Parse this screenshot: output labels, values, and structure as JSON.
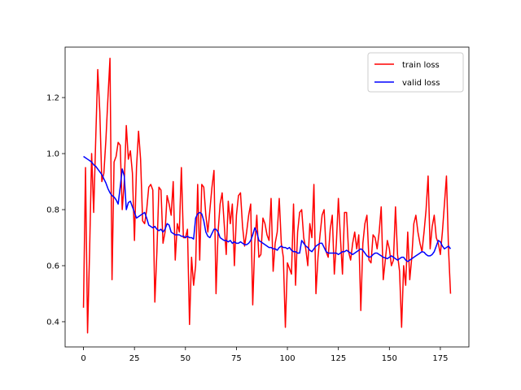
{
  "chart_data": {
    "type": "line",
    "x": [
      0,
      1,
      2,
      3,
      4,
      5,
      6,
      7,
      8,
      9,
      10,
      11,
      12,
      13,
      14,
      15,
      16,
      17,
      18,
      19,
      20,
      21,
      22,
      23,
      24,
      25,
      26,
      27,
      28,
      29,
      30,
      31,
      32,
      33,
      34,
      35,
      36,
      37,
      38,
      39,
      40,
      41,
      42,
      43,
      44,
      45,
      46,
      47,
      48,
      49,
      50,
      51,
      52,
      53,
      54,
      55,
      56,
      57,
      58,
      59,
      60,
      61,
      62,
      63,
      64,
      65,
      66,
      67,
      68,
      69,
      70,
      71,
      72,
      73,
      74,
      75,
      76,
      77,
      78,
      79,
      80,
      81,
      82,
      83,
      84,
      85,
      86,
      87,
      88,
      89,
      90,
      91,
      92,
      93,
      94,
      95,
      96,
      97,
      98,
      99,
      100,
      101,
      102,
      103,
      104,
      105,
      106,
      107,
      108,
      109,
      110,
      111,
      112,
      113,
      114,
      115,
      116,
      117,
      118,
      119,
      120,
      121,
      122,
      123,
      124,
      125,
      126,
      127,
      128,
      129,
      130,
      131,
      132,
      133,
      134,
      135,
      136,
      137,
      138,
      139,
      140,
      141,
      142,
      143,
      144,
      145,
      146,
      147,
      148,
      149,
      150,
      151,
      152,
      153,
      154,
      155,
      156,
      157,
      158,
      159,
      160,
      161,
      162,
      163,
      164,
      165,
      166,
      167,
      168,
      169,
      170,
      171,
      172,
      173,
      174,
      175,
      176,
      177,
      178,
      179,
      180
    ],
    "series": [
      {
        "name": "train loss",
        "color": "#ff0000",
        "values": [
          0.45,
          0.95,
          0.36,
          0.65,
          1.0,
          0.79,
          1.05,
          1.3,
          1.15,
          0.9,
          0.93,
          1.05,
          1.2,
          1.34,
          0.55,
          0.97,
          0.99,
          1.04,
          1.03,
          0.8,
          0.9,
          1.1,
          0.98,
          1.01,
          0.93,
          0.69,
          0.95,
          1.08,
          0.98,
          0.76,
          0.75,
          0.8,
          0.88,
          0.89,
          0.87,
          0.47,
          0.65,
          0.88,
          0.87,
          0.68,
          0.72,
          0.85,
          0.82,
          0.78,
          0.9,
          0.62,
          0.75,
          0.72,
          0.95,
          0.7,
          0.7,
          0.73,
          0.39,
          0.63,
          0.53,
          0.6,
          0.89,
          0.62,
          0.89,
          0.88,
          0.78,
          0.72,
          0.8,
          0.88,
          0.94,
          0.5,
          0.72,
          0.82,
          0.86,
          0.75,
          0.64,
          0.83,
          0.75,
          0.82,
          0.6,
          0.78,
          0.85,
          0.86,
          0.74,
          0.67,
          0.72,
          0.78,
          0.82,
          0.46,
          0.68,
          0.78,
          0.63,
          0.64,
          0.77,
          0.75,
          0.71,
          0.69,
          0.84,
          0.58,
          0.68,
          0.72,
          0.84,
          0.68,
          0.63,
          0.38,
          0.61,
          0.59,
          0.57,
          0.82,
          0.53,
          0.72,
          0.79,
          0.8,
          0.7,
          0.66,
          0.6,
          0.75,
          0.7,
          0.89,
          0.5,
          0.63,
          0.71,
          0.78,
          0.8,
          0.65,
          0.63,
          0.73,
          0.78,
          0.57,
          0.68,
          0.84,
          0.7,
          0.57,
          0.79,
          0.79,
          0.65,
          0.62,
          0.68,
          0.72,
          0.66,
          0.71,
          0.44,
          0.68,
          0.75,
          0.78,
          0.62,
          0.61,
          0.71,
          0.7,
          0.66,
          0.72,
          0.81,
          0.55,
          0.62,
          0.69,
          0.66,
          0.6,
          0.62,
          0.81,
          0.64,
          0.58,
          0.38,
          0.6,
          0.53,
          0.72,
          0.55,
          0.63,
          0.75,
          0.78,
          0.72,
          0.68,
          0.65,
          0.72,
          0.8,
          0.92,
          0.66,
          0.74,
          0.78,
          0.7,
          0.68,
          0.64,
          0.72,
          0.82,
          0.92,
          0.66,
          0.5
        ]
      },
      {
        "name": "valid loss",
        "color": "#0000ff",
        "values": [
          0.99,
          0.985,
          0.98,
          0.975,
          0.97,
          0.96,
          0.955,
          0.945,
          0.935,
          0.925,
          0.91,
          0.895,
          0.875,
          0.86,
          0.85,
          0.845,
          0.835,
          0.82,
          0.88,
          0.945,
          0.92,
          0.8,
          0.825,
          0.83,
          0.81,
          0.79,
          0.77,
          0.775,
          0.78,
          0.785,
          0.79,
          0.77,
          0.745,
          0.74,
          0.735,
          0.74,
          0.73,
          0.725,
          0.73,
          0.72,
          0.73,
          0.75,
          0.745,
          0.72,
          0.715,
          0.71,
          0.71,
          0.71,
          0.705,
          0.705,
          0.7,
          0.705,
          0.7,
          0.7,
          0.695,
          0.77,
          0.785,
          0.79,
          0.785,
          0.76,
          0.72,
          0.705,
          0.7,
          0.715,
          0.73,
          0.73,
          0.72,
          0.7,
          0.695,
          0.69,
          0.69,
          0.685,
          0.69,
          0.68,
          0.685,
          0.68,
          0.68,
          0.685,
          0.68,
          0.675,
          0.675,
          0.68,
          0.69,
          0.71,
          0.735,
          0.72,
          0.69,
          0.685,
          0.68,
          0.675,
          0.67,
          0.665,
          0.665,
          0.66,
          0.66,
          0.655,
          0.665,
          0.67,
          0.665,
          0.665,
          0.66,
          0.665,
          0.655,
          0.65,
          0.65,
          0.645,
          0.645,
          0.69,
          0.68,
          0.67,
          0.665,
          0.655,
          0.65,
          0.66,
          0.67,
          0.675,
          0.68,
          0.68,
          0.665,
          0.65,
          0.645,
          0.645,
          0.645,
          0.645,
          0.645,
          0.64,
          0.645,
          0.65,
          0.65,
          0.655,
          0.65,
          0.645,
          0.64,
          0.645,
          0.65,
          0.655,
          0.66,
          0.655,
          0.645,
          0.635,
          0.63,
          0.632,
          0.64,
          0.645,
          0.645,
          0.64,
          0.635,
          0.63,
          0.628,
          0.625,
          0.63,
          0.635,
          0.63,
          0.625,
          0.62,
          0.625,
          0.63,
          0.63,
          0.62,
          0.615,
          0.62,
          0.625,
          0.63,
          0.635,
          0.64,
          0.645,
          0.65,
          0.648,
          0.64,
          0.635,
          0.635,
          0.64,
          0.65,
          0.67,
          0.69,
          0.685,
          0.67,
          0.66,
          0.665,
          0.67,
          0.66
        ]
      }
    ],
    "xlim": [
      -9,
      189
    ],
    "xticks": [
      0,
      25,
      50,
      75,
      100,
      125,
      150,
      175
    ],
    "ylim": [
      0.31,
      1.38
    ],
    "yticks": [
      0.4,
      0.6,
      0.8,
      {
        "value": 1,
        "label": "1.0"
      },
      1.2
    ],
    "legend": "upper right"
  }
}
